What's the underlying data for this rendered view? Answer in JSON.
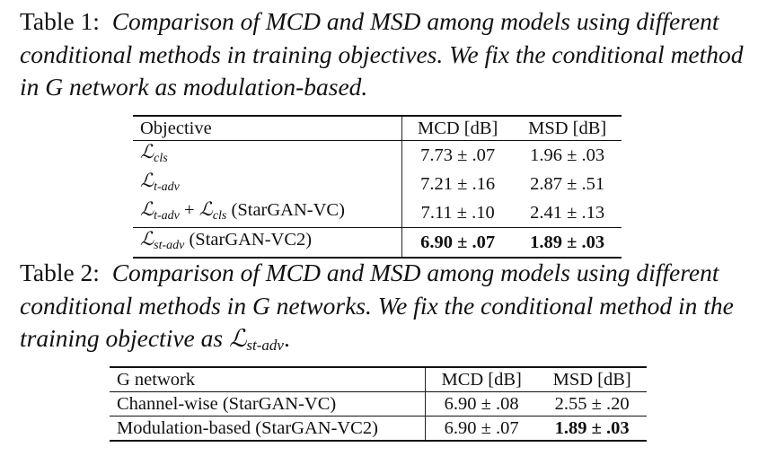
{
  "table1": {
    "caption_label": "Table 1:",
    "caption_text": "Comparison of MCD and MSD among models using different conditional methods in training objectives. We fix the conditional method in G network as modulation-based.",
    "headers": [
      "Objective",
      "MCD [dB]",
      "MSD [dB]"
    ],
    "rows": [
      {
        "sym1": "ℒ",
        "sub1": "cls",
        "sym2": "",
        "sub2": "",
        "note": "",
        "mcd": "7.73 ± .07",
        "msd": "1.96 ± .03"
      },
      {
        "sym1": "ℒ",
        "sub1": "t-adv",
        "sym2": "",
        "sub2": "",
        "note": "",
        "mcd": "7.21 ± .16",
        "msd": "2.87 ± .51"
      },
      {
        "sym1": "ℒ",
        "sub1": "t-adv",
        "plus": " + ",
        "sym2": "ℒ",
        "sub2": "cls",
        "note": " (StarGAN-VC)",
        "mcd": "7.11 ± .10",
        "msd": "2.41 ± .13"
      },
      {
        "sym1": "ℒ",
        "sub1": "st-adv",
        "sym2": "",
        "sub2": "",
        "note": " (StarGAN-VC2)",
        "mcd": "6.90 ± .07",
        "msd": "1.89 ± .03"
      }
    ]
  },
  "table2": {
    "caption_label": "Table 2:",
    "caption_text": "Comparison of MCD and MSD among models using different conditional methods in G networks. We fix the conditional method in the training objective as",
    "caption_sym": "ℒ",
    "caption_sub": "st-adv",
    "caption_end": ".",
    "headers": [
      "G network",
      "MCD [dB]",
      "MSD [dB]"
    ],
    "rows": [
      {
        "name": "Channel-wise (StarGAN-VC)",
        "mcd": "6.90 ± .08",
        "msd": "2.55 ± .20"
      },
      {
        "name": "Modulation-based (StarGAN-VC2)",
        "mcd": "6.90 ± .07",
        "msd": "1.89 ± .03"
      }
    ]
  }
}
